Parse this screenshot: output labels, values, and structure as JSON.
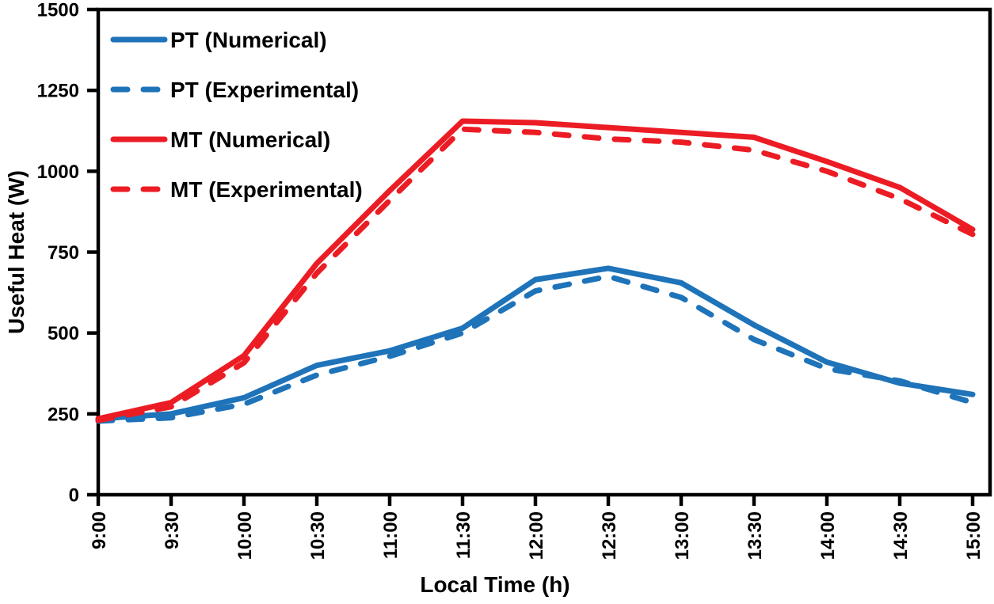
{
  "chart_data": {
    "type": "line",
    "title": "",
    "xlabel": "Local Time (h)",
    "ylabel": "Useful Heat (W)",
    "categories": [
      "9:00",
      "9:30",
      "10:00",
      "10:30",
      "11:00",
      "11:30",
      "12:00",
      "12:30",
      "13:00",
      "13:30",
      "14:00",
      "14:30",
      "15:00"
    ],
    "ylim": [
      0,
      1500
    ],
    "yticks": [
      0,
      250,
      500,
      750,
      1000,
      1250,
      1500
    ],
    "grid": false,
    "legend_position": "top-left-inside",
    "axis_color": "#000000",
    "series": [
      {
        "name": "PT (Numerical)",
        "color": "#1E73B9",
        "style": "solid",
        "values": [
          235,
          250,
          300,
          400,
          445,
          515,
          665,
          700,
          655,
          525,
          410,
          345,
          310
        ]
      },
      {
        "name": "PT (Experimental)",
        "color": "#1E73B9",
        "style": "dashed",
        "values": [
          228,
          238,
          280,
          370,
          428,
          500,
          630,
          675,
          610,
          480,
          390,
          352,
          285
        ]
      },
      {
        "name": "MT (Numerical)",
        "color": "#EC1C24",
        "style": "solid",
        "values": [
          235,
          285,
          430,
          715,
          940,
          1155,
          1150,
          1135,
          1120,
          1105,
          1030,
          950,
          820
        ]
      },
      {
        "name": "MT (Experimental)",
        "color": "#EC1C24",
        "style": "dashed",
        "values": [
          230,
          272,
          408,
          685,
          910,
          1130,
          1120,
          1100,
          1090,
          1065,
          1000,
          915,
          805
        ]
      }
    ]
  }
}
